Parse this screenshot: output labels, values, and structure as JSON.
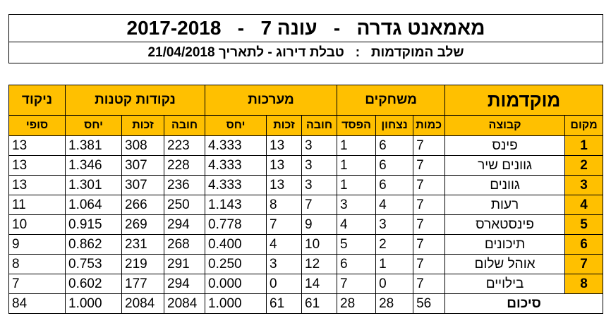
{
  "header": {
    "title": "מאמאנט גדרה   -   עונה 7   -   2017-2018",
    "subtitle": "שלב המוקדמות   :   טבלת דירוג - לתאריך 21/04/2018"
  },
  "table": {
    "group_headers": {
      "stage": "מוקדמות",
      "games": "משחקים",
      "sets": "מערכות",
      "points": "נקודות קטנות",
      "score": "ניקוד"
    },
    "sub_headers": {
      "place": "מקום",
      "team": "קבוצה",
      "played": "כמות",
      "won": "נצחון",
      "lost": "הפסד",
      "sets_against": "חובה",
      "sets_for": "זכות",
      "sets_ratio": "יחס",
      "points_against": "חובה",
      "points_for": "זכות",
      "points_ratio": "יחס",
      "final": "סופי"
    },
    "rows": [
      {
        "place": "1",
        "team": "פינס",
        "played": "7",
        "won": "6",
        "lost": "1",
        "sets_against": "3",
        "sets_for": "13",
        "sets_ratio": "4.333",
        "points_against": "223",
        "points_for": "308",
        "points_ratio": "1.381",
        "final": "13"
      },
      {
        "place": "2",
        "team": "גוונים שיר",
        "played": "7",
        "won": "6",
        "lost": "1",
        "sets_against": "3",
        "sets_for": "13",
        "sets_ratio": "4.333",
        "points_against": "228",
        "points_for": "307",
        "points_ratio": "1.346",
        "final": "13"
      },
      {
        "place": "3",
        "team": "גוונים",
        "played": "7",
        "won": "6",
        "lost": "1",
        "sets_against": "3",
        "sets_for": "13",
        "sets_ratio": "4.333",
        "points_against": "236",
        "points_for": "307",
        "points_ratio": "1.301",
        "final": "13"
      },
      {
        "place": "4",
        "team": "רעות",
        "played": "7",
        "won": "4",
        "lost": "3",
        "sets_against": "7",
        "sets_for": "8",
        "sets_ratio": "1.143",
        "points_against": "250",
        "points_for": "266",
        "points_ratio": "1.064",
        "final": "11"
      },
      {
        "place": "5",
        "team": "פינסטארס",
        "played": "7",
        "won": "3",
        "lost": "4",
        "sets_against": "9",
        "sets_for": "7",
        "sets_ratio": "0.778",
        "points_against": "294",
        "points_for": "269",
        "points_ratio": "0.915",
        "final": "10"
      },
      {
        "place": "6",
        "team": "תיכונים",
        "played": "7",
        "won": "2",
        "lost": "5",
        "sets_against": "10",
        "sets_for": "4",
        "sets_ratio": "0.400",
        "points_against": "268",
        "points_for": "231",
        "points_ratio": "0.862",
        "final": "9"
      },
      {
        "place": "7",
        "team": "אוהל שלום",
        "played": "7",
        "won": "1",
        "lost": "6",
        "sets_against": "12",
        "sets_for": "3",
        "sets_ratio": "0.250",
        "points_against": "291",
        "points_for": "219",
        "points_ratio": "0.753",
        "final": "8"
      },
      {
        "place": "8",
        "team": "בילויים",
        "played": "7",
        "won": "0",
        "lost": "7",
        "sets_against": "14",
        "sets_for": "0",
        "sets_ratio": "0.000",
        "points_against": "294",
        "points_for": "177",
        "points_ratio": "0.602",
        "final": "7"
      }
    ],
    "totals": {
      "label": "סיכום",
      "played": "56",
      "won": "28",
      "lost": "28",
      "sets_against": "61",
      "sets_for": "61",
      "sets_ratio": "1.000",
      "points_against": "2084",
      "points_for": "2084",
      "points_ratio": "1.000",
      "final": "84"
    }
  },
  "colors": {
    "header_fill": "#FFC000",
    "border": "#000000"
  }
}
